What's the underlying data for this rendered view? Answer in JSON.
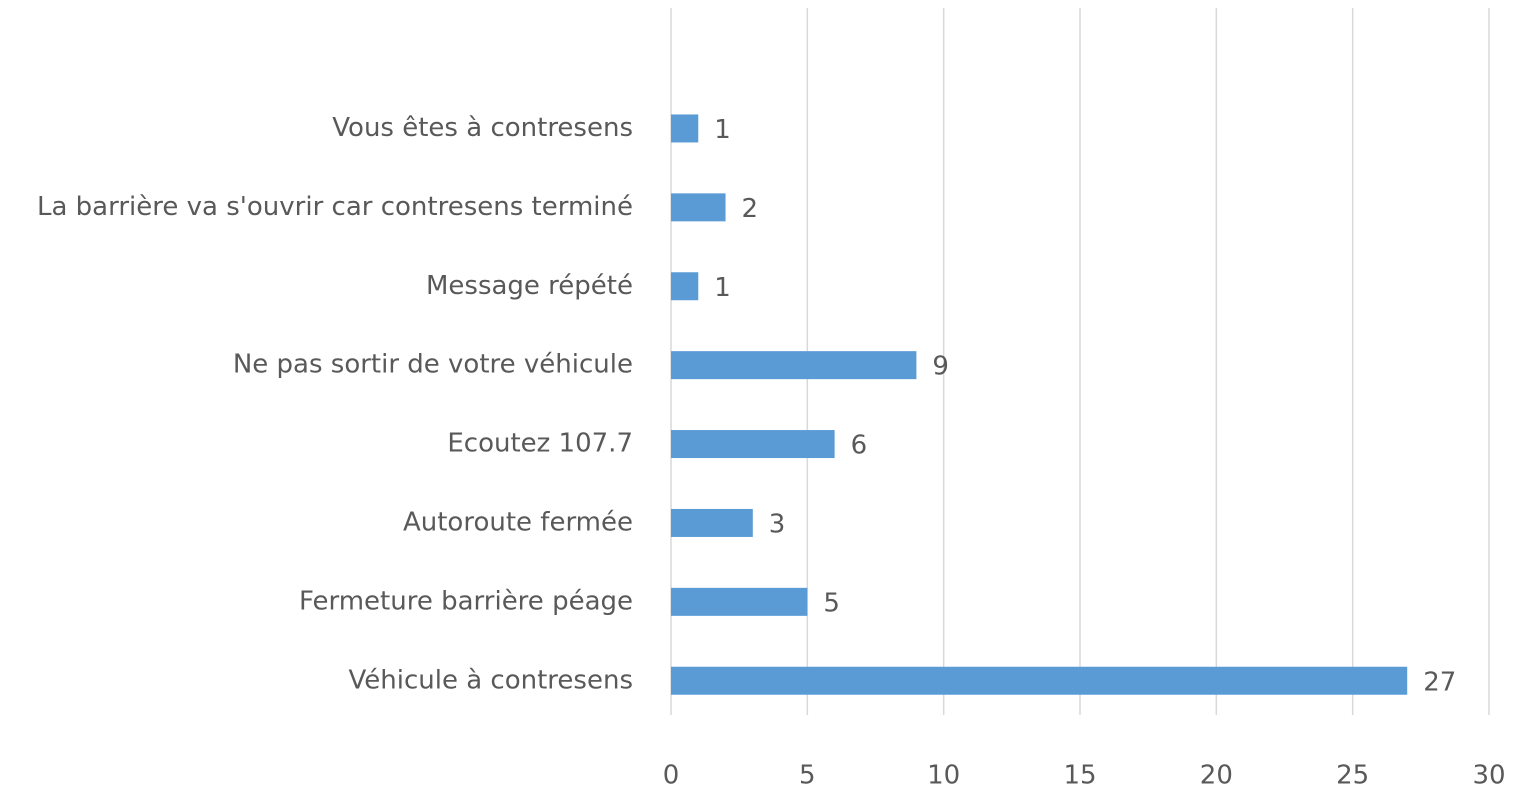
{
  "chart_data": {
    "type": "barh",
    "categories": [
      "Vous êtes à contresens",
      "La barrière va s'ouvrir car contresens terminé",
      "Message répété",
      "Ne pas sortir de votre véhicule",
      "Ecoutez 107.7",
      "Autoroute fermée",
      "Fermeture barrière péage",
      "Véhicule à contresens"
    ],
    "values": [
      1,
      2,
      1,
      9,
      6,
      3,
      5,
      27
    ],
    "color": "#5b9bd5",
    "xlim": [
      0,
      30
    ],
    "xticks": [
      0,
      5,
      10,
      15,
      20,
      25,
      30
    ],
    "grid": true
  }
}
